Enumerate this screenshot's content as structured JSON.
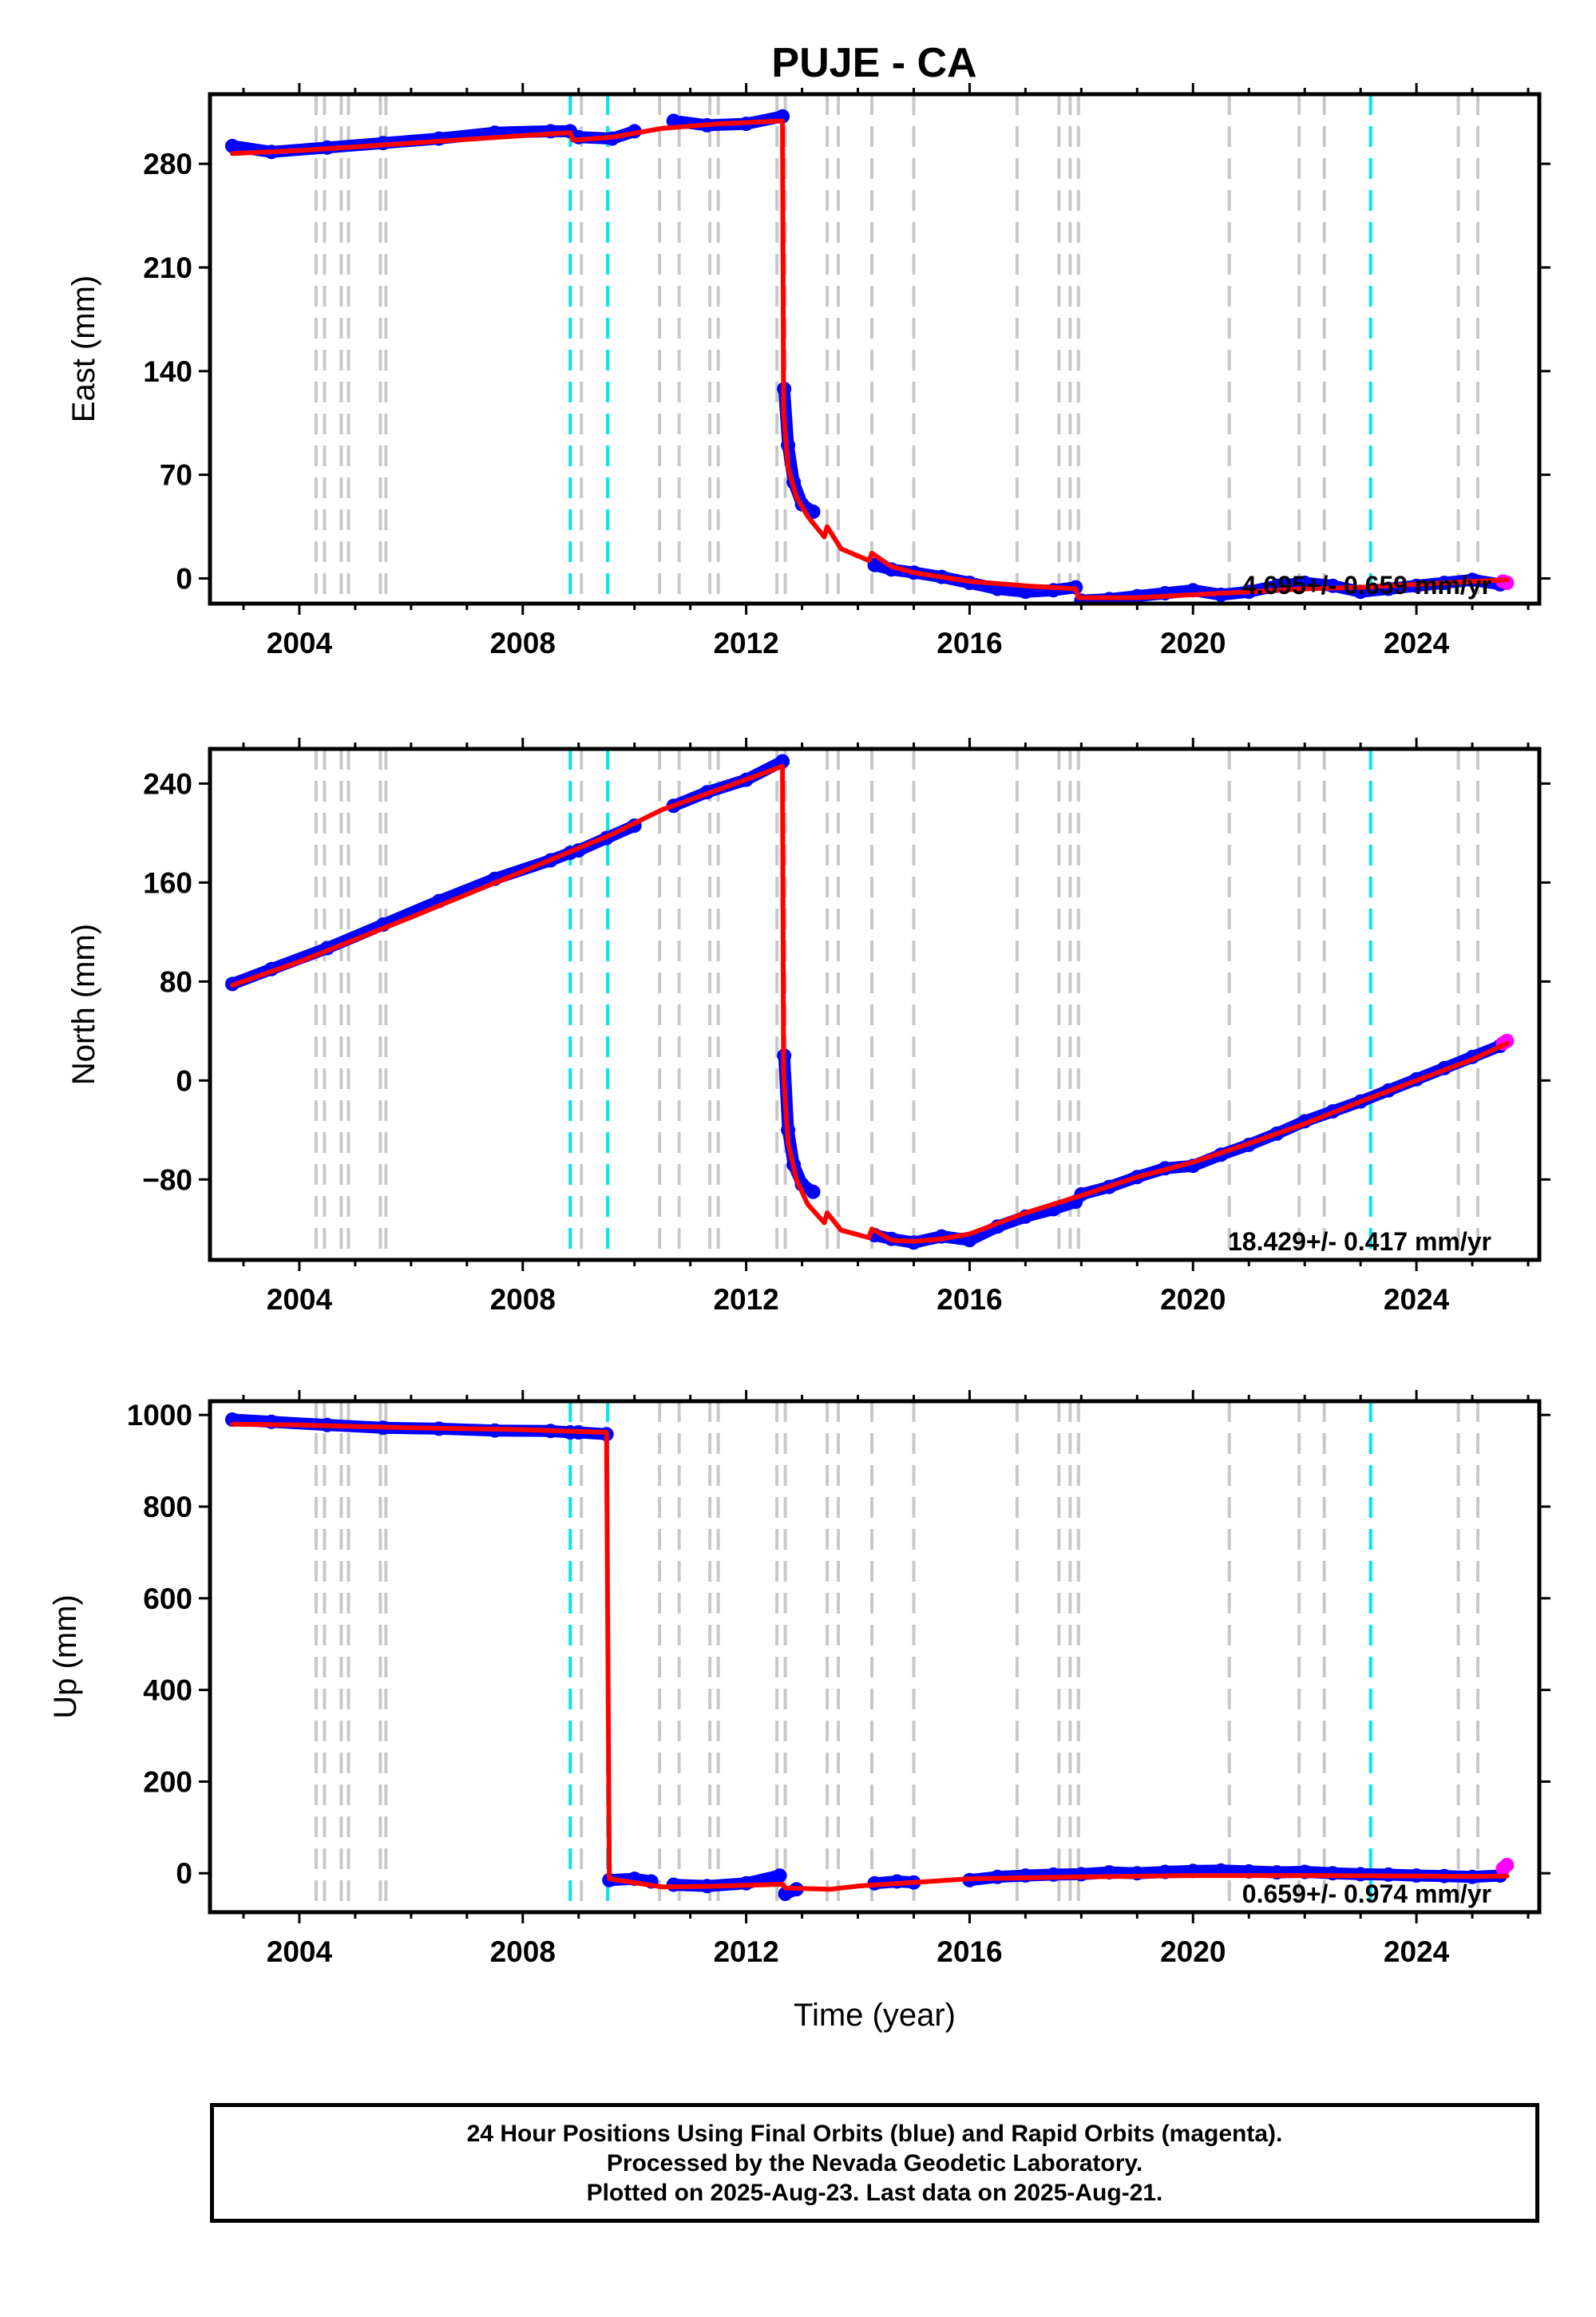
{
  "title": "PUJE - CA",
  "colors": {
    "final_orbits": "#0000ff",
    "rapid_orbits": "#ff00ff",
    "model_fit": "#ff0000",
    "equipment_change": "#c8c8c8",
    "earthquake": "#00e5ee"
  },
  "chart_data": [
    {
      "type": "scatter",
      "ylabel": "East (mm)",
      "xlabel": "",
      "xlim": [
        2002.4,
        2026.2
      ],
      "ylim": [
        -17,
        327
      ],
      "yticks": [
        0,
        70,
        140,
        210,
        280
      ],
      "xticks": [
        2004,
        2008,
        2012,
        2016,
        2020,
        2024
      ],
      "grid": false,
      "rate_text": "4.695+/- 0.659 mm/yr",
      "series": [
        {
          "name": "Final Orbits (blue)",
          "segments": [
            {
              "x": [
                2002.8,
                2003.5,
                2004.5,
                2005.5,
                2006.5,
                2007.5,
                2008.5,
                2008.85
              ],
              "y": [
                292,
                288,
                291,
                294,
                297,
                301,
                302,
                302
              ]
            },
            {
              "x": [
                2009.0,
                2009.6,
                2010.0
              ],
              "y": [
                298,
                297,
                302
              ]
            },
            {
              "x": [
                2010.7,
                2011.3,
                2012.0,
                2012.65
              ],
              "y": [
                309,
                306,
                307,
                312
              ]
            },
            {
              "x": [
                2012.68,
                2012.75,
                2012.85,
                2013.0,
                2013.2
              ],
              "y": [
                128,
                90,
                65,
                50,
                45
              ]
            },
            {
              "x": [
                2014.3,
                2014.6,
                2015.0,
                2015.5,
                2016.0,
                2016.5,
                2017.0,
                2017.5,
                2017.9
              ],
              "y": [
                9,
                6,
                4,
                1,
                -3,
                -7,
                -9,
                -8,
                -6
              ]
            },
            {
              "x": [
                2018.0,
                2018.5,
                2019.0,
                2019.5,
                2020.0,
                2020.5,
                2021.0,
                2021.5,
                2022.0,
                2022.5,
                2023.0,
                2023.5,
                2024.0,
                2024.5,
                2025.0,
                2025.5
              ],
              "y": [
                -15,
                -14,
                -12,
                -10,
                -8,
                -11,
                -9,
                -5,
                -3,
                -5,
                -9,
                -7,
                -5,
                -3,
                -1,
                -4
              ]
            }
          ]
        },
        {
          "name": "Rapid Orbits (magenta)",
          "segments": [
            {
              "x": [
                2025.55,
                2025.62
              ],
              "y": [
                -2,
                -3
              ]
            }
          ]
        },
        {
          "name": "Model fit",
          "segments": [
            {
              "x": [
                2002.8,
                2004.0,
                2006.0,
                2008.0,
                2008.85,
                2008.9,
                2009.6,
                2010.5,
                2011.5,
                2012.65,
                2012.67,
                2012.75,
                2012.9,
                2013.1,
                2013.4,
                2013.45,
                2013.7,
                2014.2,
                2014.25,
                2014.6,
                2015.0,
                2015.5,
                2016.0,
                2017.0,
                2017.9,
                2017.95,
                2019.0,
                2020.0,
                2021.0,
                2022.0,
                2023.0,
                2024.0,
                2025.0,
                2025.62
              ],
              "y": [
                287,
                289,
                294,
                299,
                301,
                296,
                298,
                304,
                307,
                309,
                112,
                75,
                55,
                42,
                28,
                35,
                20,
                12,
                17,
                8,
                4,
                1,
                -2,
                -5,
                -7,
                -13,
                -13,
                -11,
                -9,
                -7,
                -6,
                -4,
                -2,
                -1
              ]
            }
          ]
        }
      ]
    },
    {
      "type": "scatter",
      "ylabel": "North (mm)",
      "xlabel": "",
      "xlim": [
        2002.4,
        2026.2
      ],
      "ylim": [
        -145,
        268
      ],
      "yticks": [
        -80,
        0,
        80,
        160,
        240
      ],
      "xticks": [
        2004,
        2008,
        2012,
        2016,
        2020,
        2024
      ],
      "grid": false,
      "rate_text": "18.429+/- 0.417 mm/yr",
      "series": [
        {
          "name": "Final Orbits (blue)",
          "segments": [
            {
              "x": [
                2002.8,
                2003.5,
                2004.5,
                2005.5,
                2006.5,
                2007.5,
                2008.5,
                2008.85
              ],
              "y": [
                78,
                90,
                107,
                126,
                145,
                163,
                178,
                184
              ]
            },
            {
              "x": [
                2009.0,
                2009.5,
                2010.0
              ],
              "y": [
                186,
                196,
                206
              ]
            },
            {
              "x": [
                2010.7,
                2011.3,
                2012.0,
                2012.65
              ],
              "y": [
                222,
                233,
                243,
                258
              ]
            },
            {
              "x": [
                2012.68,
                2012.75,
                2012.85,
                2013.0,
                2013.2
              ],
              "y": [
                20,
                -40,
                -68,
                -84,
                -90
              ]
            },
            {
              "x": [
                2014.3,
                2014.6,
                2015.0,
                2015.5,
                2016.0,
                2016.5,
                2017.0,
                2017.5,
                2017.9
              ],
              "y": [
                -125,
                -128,
                -131,
                -126,
                -129,
                -118,
                -110,
                -104,
                -98
              ]
            },
            {
              "x": [
                2018.0,
                2018.5,
                2019.0,
                2019.5,
                2020.0,
                2020.5,
                2021.0,
                2021.5,
                2022.0,
                2022.5,
                2023.0,
                2023.5,
                2024.0,
                2024.5,
                2025.0,
                2025.5
              ],
              "y": [
                -92,
                -86,
                -78,
                -71,
                -69,
                -60,
                -52,
                -43,
                -33,
                -25,
                -17,
                -8,
                1,
                10,
                19,
                28
              ]
            }
          ]
        },
        {
          "name": "Rapid Orbits (magenta)",
          "segments": [
            {
              "x": [
                2025.55,
                2025.62
              ],
              "y": [
                30,
                32
              ]
            }
          ]
        },
        {
          "name": "Model fit",
          "segments": [
            {
              "x": [
                2002.8,
                2004.0,
                2006.0,
                2008.0,
                2008.85,
                2009.6,
                2010.5,
                2011.5,
                2012.65,
                2012.67,
                2012.75,
                2012.9,
                2013.1,
                2013.4,
                2013.45,
                2013.7,
                2014.2,
                2014.25,
                2014.6,
                2015.0,
                2015.5,
                2016.0,
                2017.0,
                2018.0,
                2019.0,
                2020.0,
                2021.0,
                2022.0,
                2023.0,
                2024.0,
                2025.0,
                2025.62
              ],
              "y": [
                77,
                96,
                132,
                169,
                185,
                199,
                219,
                235,
                254,
                5,
                -50,
                -80,
                -100,
                -115,
                -107,
                -121,
                -127,
                -120,
                -129,
                -130,
                -128,
                -124,
                -107,
                -93,
                -78,
                -66,
                -51,
                -35,
                -17,
                0,
                17,
                30
              ]
            }
          ]
        }
      ]
    },
    {
      "type": "scatter",
      "ylabel": "Up (mm)",
      "xlabel": "Time (year)",
      "xlim": [
        2002.4,
        2026.2
      ],
      "ylim": [
        -85,
        1030
      ],
      "yticks": [
        0,
        200,
        400,
        600,
        800,
        1000
      ],
      "xticks": [
        2004,
        2008,
        2012,
        2016,
        2020,
        2024
      ],
      "grid": false,
      "rate_text": "0.659+/- 0.974 mm/yr",
      "series": [
        {
          "name": "Final Orbits (blue)",
          "segments": [
            {
              "x": [
                2002.8,
                2003.5,
                2004.5,
                2005.5,
                2006.5,
                2007.5,
                2008.5,
                2008.85
              ],
              "y": [
                990,
                985,
                978,
                972,
                970,
                966,
                965,
                962
              ]
            },
            {
              "x": [
                2009.0,
                2009.5
              ],
              "y": [
                962,
                958
              ]
            },
            {
              "x": [
                2009.55,
                2010.0,
                2010.3
              ],
              "y": [
                -15,
                -12,
                -18
              ]
            },
            {
              "x": [
                2010.7,
                2011.3,
                2012.0,
                2012.6
              ],
              "y": [
                -25,
                -28,
                -22,
                -5
              ]
            },
            {
              "x": [
                2012.7,
                2012.9
              ],
              "y": [
                -45,
                -35
              ]
            },
            {
              "x": [
                2014.3,
                2014.7,
                2015.0
              ],
              "y": [
                -22,
                -18,
                -20
              ]
            },
            {
              "x": [
                2016.0,
                2016.5,
                2017.0,
                2017.5,
                2018.0,
                2018.5,
                2019.0,
                2019.5,
                2020.0,
                2020.5,
                2021.0,
                2021.5,
                2022.0,
                2022.5,
                2023.0,
                2023.5,
                2024.0,
                2024.5,
                2025.0,
                2025.5
              ],
              "y": [
                -15,
                -8,
                -5,
                -3,
                -2,
                2,
                0,
                3,
                5,
                6,
                4,
                2,
                3,
                0,
                -2,
                -3,
                -5,
                -6,
                -8,
                -5
              ]
            }
          ]
        },
        {
          "name": "Rapid Orbits (magenta)",
          "segments": [
            {
              "x": [
                2025.55,
                2025.62
              ],
              "y": [
                10,
                18
              ]
            }
          ]
        },
        {
          "name": "Model fit",
          "segments": [
            {
              "x": [
                2002.8,
                2004.0,
                2006.0,
                2008.0,
                2009.5,
                2009.55,
                2010.5,
                2011.5,
                2012.65,
                2012.7,
                2013.5,
                2014.0,
                2015.0,
                2016.0,
                2018.0,
                2020.0,
                2022.0,
                2024.0,
                2025.0,
                2025.62
              ],
              "y": [
                980,
                978,
                972,
                968,
                962,
                -12,
                -30,
                -28,
                -24,
                -32,
                -35,
                -28,
                -20,
                -12,
                -8,
                -5,
                -5,
                -6,
                -7,
                -6
              ]
            }
          ]
        }
      ]
    }
  ],
  "vlines": {
    "equipment_changes": [
      2004.3,
      2004.45,
      2004.75,
      2004.88,
      2005.45,
      2005.55,
      2009.05,
      2010.45,
      2010.8,
      2011.35,
      2011.5,
      2012.55,
      2012.7,
      2013.45,
      2013.65,
      2014.25,
      2015.0,
      2016.85,
      2017.6,
      2017.8,
      2017.95,
      2020.65,
      2021.9,
      2022.35,
      2024.75,
      2025.1
    ],
    "earthquakes": [
      2008.85,
      2009.52,
      2023.18
    ]
  },
  "footer": {
    "line1": "24 Hour Positions Using Final Orbits (blue) and Rapid Orbits (magenta).",
    "line2": "Processed by the Nevada Geodetic Laboratory.",
    "line3": "Plotted on 2025-Aug-23. Last data on 2025-Aug-21."
  }
}
